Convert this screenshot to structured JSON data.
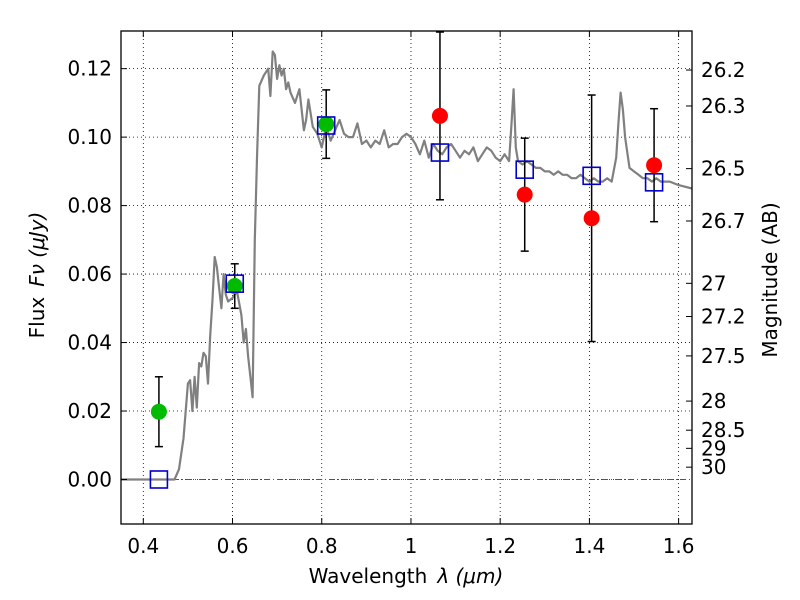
{
  "chart_data": {
    "type": "scatter",
    "xlabel_text": "Wavelength",
    "xlabel_math": "λ (μm)",
    "ylabel_text": "Flux",
    "ylabel_math": "Fν (μJy)",
    "y2label": "Magnitude (AB)",
    "xlim": [
      0.35,
      1.63
    ],
    "ylim": [
      -0.013,
      0.131
    ],
    "grid": true,
    "x_ticks": [
      0.4,
      0.6,
      0.8,
      1.0,
      1.2,
      1.4,
      1.6
    ],
    "x_tick_labels": [
      "0.4",
      "0.6",
      "0.8",
      "1",
      "1.2",
      "1.4",
      "1.6"
    ],
    "y_ticks": [
      0.0,
      0.02,
      0.04,
      0.06,
      0.08,
      0.1,
      0.12
    ],
    "y_tick_labels": [
      "0.00",
      "0.02",
      "0.04",
      "0.06",
      "0.08",
      "0.10",
      "0.12"
    ],
    "magnitude_ticks": [
      {
        "label": "26.2",
        "flux": 0.1196
      },
      {
        "label": "26.3",
        "flux": 0.1091
      },
      {
        "label": "26.5",
        "flux": 0.0908
      },
      {
        "label": "26.7",
        "flux": 0.0755
      },
      {
        "label": "27",
        "flux": 0.0573
      },
      {
        "label": "27.2",
        "flux": 0.0476
      },
      {
        "label": "27.5",
        "flux": 0.0361
      },
      {
        "label": "28",
        "flux": 0.0229
      },
      {
        "label": "28.5",
        "flux": 0.0144
      },
      {
        "label": "29",
        "flux": 0.0091
      },
      {
        "label": "30",
        "flux": 0.0036
      }
    ],
    "series": [
      {
        "kind": "model-spectrum",
        "color": "#808080",
        "x": [
          0.35,
          0.47,
          0.48,
          0.49,
          0.495,
          0.5,
          0.505,
          0.51,
          0.515,
          0.52,
          0.525,
          0.53,
          0.535,
          0.54,
          0.545,
          0.55,
          0.555,
          0.56,
          0.565,
          0.57,
          0.575,
          0.58,
          0.585,
          0.59,
          0.6,
          0.61,
          0.62,
          0.625,
          0.63,
          0.635,
          0.64,
          0.645,
          0.65,
          0.655,
          0.66,
          0.67,
          0.68,
          0.685,
          0.69,
          0.695,
          0.7,
          0.705,
          0.71,
          0.715,
          0.72,
          0.725,
          0.73,
          0.74,
          0.75,
          0.76,
          0.765,
          0.77,
          0.775,
          0.78,
          0.79,
          0.8,
          0.81,
          0.82,
          0.83,
          0.84,
          0.85,
          0.86,
          0.87,
          0.88,
          0.89,
          0.9,
          0.91,
          0.92,
          0.93,
          0.94,
          0.95,
          0.96,
          0.97,
          0.98,
          0.99,
          1.0,
          1.01,
          1.02,
          1.03,
          1.04,
          1.05,
          1.06,
          1.07,
          1.08,
          1.09,
          1.1,
          1.11,
          1.12,
          1.13,
          1.14,
          1.15,
          1.16,
          1.17,
          1.18,
          1.19,
          1.2,
          1.21,
          1.22,
          1.225,
          1.23,
          1.235,
          1.24,
          1.25,
          1.26,
          1.27,
          1.28,
          1.29,
          1.3,
          1.31,
          1.32,
          1.33,
          1.34,
          1.35,
          1.36,
          1.37,
          1.38,
          1.39,
          1.4,
          1.41,
          1.42,
          1.43,
          1.44,
          1.45,
          1.46,
          1.465,
          1.47,
          1.475,
          1.48,
          1.49,
          1.5,
          1.51,
          1.52,
          1.53,
          1.54,
          1.55,
          1.56,
          1.58,
          1.6,
          1.63
        ],
        "y": [
          0.0,
          0.0,
          0.003,
          0.012,
          0.02,
          0.028,
          0.029,
          0.02,
          0.03,
          0.021,
          0.034,
          0.033,
          0.037,
          0.036,
          0.028,
          0.042,
          0.052,
          0.065,
          0.062,
          0.056,
          0.05,
          0.06,
          0.054,
          0.052,
          0.053,
          0.055,
          0.048,
          0.04,
          0.044,
          0.036,
          0.03,
          0.024,
          0.07,
          0.095,
          0.115,
          0.118,
          0.12,
          0.112,
          0.125,
          0.124,
          0.117,
          0.121,
          0.118,
          0.12,
          0.114,
          0.116,
          0.113,
          0.11,
          0.114,
          0.102,
          0.105,
          0.111,
          0.107,
          0.103,
          0.101,
          0.097,
          0.103,
          0.099,
          0.102,
          0.105,
          0.101,
          0.1,
          0.1,
          0.104,
          0.098,
          0.099,
          0.097,
          0.099,
          0.098,
          0.102,
          0.097,
          0.098,
          0.098,
          0.1,
          0.101,
          0.1,
          0.098,
          0.095,
          0.099,
          0.094,
          0.098,
          0.096,
          0.095,
          0.097,
          0.098,
          0.096,
          0.094,
          0.096,
          0.095,
          0.097,
          0.093,
          0.095,
          0.097,
          0.096,
          0.094,
          0.093,
          0.095,
          0.093,
          0.103,
          0.114,
          0.097,
          0.093,
          0.092,
          0.093,
          0.092,
          0.091,
          0.091,
          0.09,
          0.09,
          0.089,
          0.09,
          0.089,
          0.089,
          0.088,
          0.088,
          0.089,
          0.088,
          0.087,
          0.088,
          0.087,
          0.087,
          0.088,
          0.087,
          0.094,
          0.104,
          0.113,
          0.108,
          0.1,
          0.091,
          0.09,
          0.089,
          0.088,
          0.088,
          0.087,
          0.088,
          0.087,
          0.087,
          0.086,
          0.085
        ]
      },
      {
        "kind": "observed-optical",
        "color": "#00bb00",
        "points": [
          {
            "x": 0.435,
            "y": 0.0198,
            "err": 0.0102
          },
          {
            "x": 0.605,
            "y": 0.0565,
            "err": 0.0065
          },
          {
            "x": 0.81,
            "y": 0.1038,
            "err": 0.01
          }
        ]
      },
      {
        "kind": "observed-infrared",
        "color": "#ff0000",
        "points": [
          {
            "x": 1.065,
            "y": 0.1062,
            "err": 0.0245
          },
          {
            "x": 1.255,
            "y": 0.0832,
            "err": 0.0165
          },
          {
            "x": 1.405,
            "y": 0.0763,
            "err": 0.036
          },
          {
            "x": 1.545,
            "y": 0.0918,
            "err": 0.0165
          }
        ]
      },
      {
        "kind": "model-bandpass",
        "color": "#0000cc",
        "points": [
          {
            "x": 0.435,
            "y": 0.0
          },
          {
            "x": 0.605,
            "y": 0.0572
          },
          {
            "x": 0.81,
            "y": 0.1034
          },
          {
            "x": 1.065,
            "y": 0.0955
          },
          {
            "x": 1.255,
            "y": 0.0905
          },
          {
            "x": 1.405,
            "y": 0.0887
          },
          {
            "x": 1.545,
            "y": 0.0868
          }
        ]
      }
    ]
  }
}
